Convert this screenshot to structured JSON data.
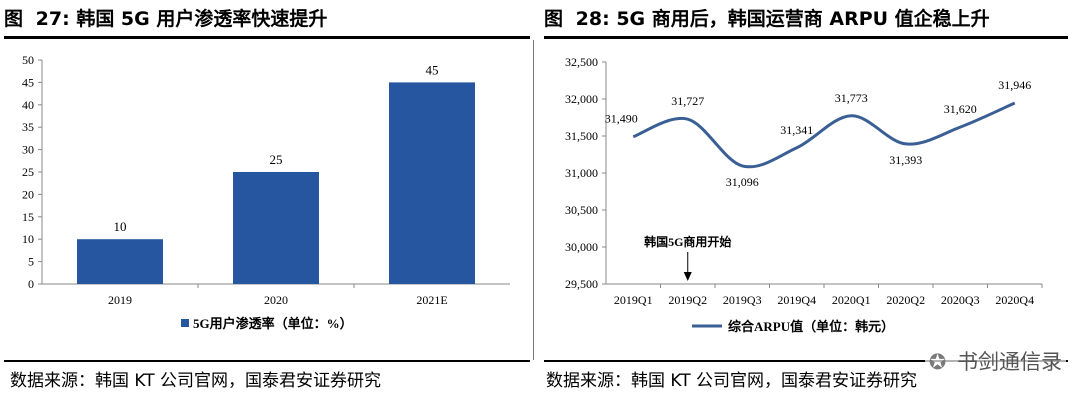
{
  "chart_data": [
    {
      "type": "bar",
      "title": "图 27: 韩国 5G 用户渗透率快速提升",
      "fig_label": "图",
      "fig_num": "27:",
      "fig_caption": "韩国 5G 用户渗透率快速提升",
      "categories": [
        "2019",
        "2020",
        "2021E"
      ],
      "series": [
        {
          "name": "5G用户渗透率（单位：%）",
          "values": [
            10,
            25,
            45
          ],
          "color": "#2756A0"
        }
      ],
      "ylim": [
        0,
        50
      ],
      "yticks": [
        0,
        5,
        10,
        15,
        20,
        25,
        30,
        35,
        40,
        45,
        50
      ],
      "data_labels": [
        "10",
        "25",
        "45"
      ],
      "legend_position": "bottom",
      "grid": false,
      "source": "数据来源：韩国 KT 公司官网，国泰君安证券研究"
    },
    {
      "type": "line",
      "title": "图 28: 5G 商用后，韩国运营商 ARPU 值企稳上升",
      "fig_label": "图",
      "fig_num": "28:",
      "fig_caption": "5G 商用后，韩国运营商 ARPU 值企稳上升",
      "categories": [
        "2019Q1",
        "2019Q2",
        "2019Q3",
        "2019Q4",
        "2020Q1",
        "2020Q2",
        "2020Q3",
        "2020Q4"
      ],
      "series": [
        {
          "name": "综合ARPU值（单位：韩元）",
          "values": [
            31490,
            31727,
            31096,
            31341,
            31773,
            31393,
            31620,
            31946
          ],
          "color": "#3A5F94"
        }
      ],
      "data_labels": [
        "31,490",
        "31,727",
        "31,096",
        "31,341",
        "31,773",
        "31,393",
        "31,620",
        "31,946"
      ],
      "ylim": [
        29500,
        32500
      ],
      "yticks": [
        29500,
        30000,
        30500,
        31000,
        31500,
        32000,
        32500
      ],
      "ytick_labels": [
        "29,500",
        "30,000",
        "30,500",
        "31,000",
        "31,500",
        "32,000",
        "32,500"
      ],
      "annotation": {
        "text": "韩国5G商用开始",
        "category": "2019Q2"
      },
      "legend_position": "bottom",
      "grid": false,
      "source": "数据来源：韩国 KT 公司官网，国泰君安证券研究"
    }
  ],
  "watermark": {
    "icon": "wechat-icon",
    "text": "书剑通信录"
  }
}
